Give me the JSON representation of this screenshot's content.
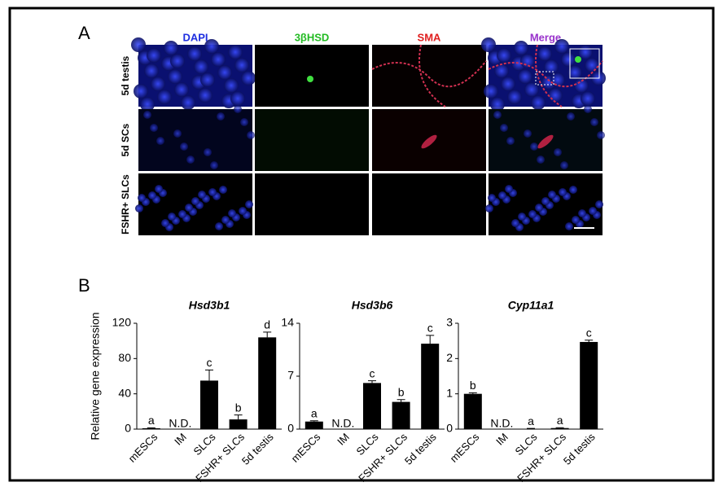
{
  "panel_a": {
    "label": "A",
    "columns": [
      "DAPI",
      "3βHSD",
      "SMA",
      "Merge"
    ],
    "rows": [
      "5d testis",
      "5d SCs",
      "FSHR+ SLCs"
    ]
  },
  "panel_b": {
    "label": "B",
    "ylabel": "Relative gene expression"
  },
  "chart_data": [
    {
      "type": "bar",
      "title": "Hsd3b1",
      "categories": [
        "mESCs",
        "IM",
        "SLCs",
        "FSHR+ SLCs",
        "5d testis"
      ],
      "values": [
        1,
        null,
        55,
        11,
        104
      ],
      "errors": [
        0.5,
        null,
        12,
        5,
        6
      ],
      "value_labels": [
        "a",
        "N.D.",
        "c",
        "b",
        "d"
      ],
      "color": "#000000",
      "ylim": [
        0,
        120
      ],
      "yticks": [
        0,
        40,
        80,
        120
      ]
    },
    {
      "type": "bar",
      "title": "Hsd3b6",
      "categories": [
        "mESCs",
        "IM",
        "SLCs",
        "FSHR+ SLCs",
        "5d testis"
      ],
      "values": [
        1,
        null,
        6.1,
        3.6,
        11.3
      ],
      "errors": [
        0.1,
        null,
        0.3,
        0.3,
        1.1
      ],
      "value_labels": [
        "a",
        "N.D.",
        "c",
        "b",
        "c"
      ],
      "color": "#000000",
      "ylim": [
        0,
        14
      ],
      "yticks": [
        0,
        7,
        14
      ]
    },
    {
      "type": "bar",
      "title": "Cyp11a1",
      "categories": [
        "mESCs",
        "IM",
        "SLCs",
        "FSHR+ SLCs",
        "5d testis"
      ],
      "values": [
        1.0,
        null,
        0.01,
        0.03,
        2.47
      ],
      "errors": [
        0.03,
        null,
        0.01,
        0.01,
        0.05
      ],
      "value_labels": [
        "b",
        "N.D.",
        "a",
        "a",
        "c"
      ],
      "color": "#000000",
      "ylim": [
        0,
        3
      ],
      "yticks": [
        0,
        1,
        2,
        3
      ]
    }
  ]
}
